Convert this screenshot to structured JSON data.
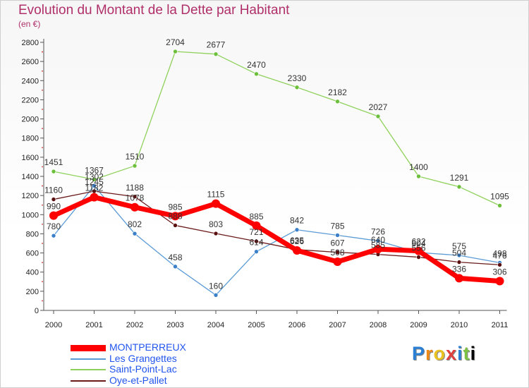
{
  "header": {
    "title": "Evolution du Montant de la Dette par Habitant",
    "subtitle": "(en €)"
  },
  "logo": {
    "text": "Proxiti"
  },
  "colors": {
    "MONTPERREUX": "#ff0000",
    "Les Grangettes": "#5b9bd5",
    "Saint-Point-Lac": "#8fd15b",
    "Oye-et-Pallet": "#6b1a1a",
    "title": "#b0306a"
  },
  "chart_data": {
    "type": "line",
    "title": "Evolution du Montant de la Dette par Habitant",
    "subtitle": "(en €)",
    "x": [
      "2000",
      "2001",
      "2002",
      "2003",
      "2004",
      "2005",
      "2006",
      "2007",
      "2008",
      "2009",
      "2010",
      "2011"
    ],
    "ylim": [
      0,
      2800
    ],
    "yticks": [
      0,
      200,
      400,
      600,
      800,
      1000,
      1200,
      1400,
      1600,
      1800,
      2000,
      2200,
      2400,
      2600,
      2800
    ],
    "grid": false,
    "legend_position": "bottom-left",
    "series": [
      {
        "name": "MONTPERREUX",
        "values": [
          990,
          1182,
          1078,
          985,
          1115,
          885,
          626,
          508,
          640,
          622,
          336,
          306
        ],
        "labels": [
          "990",
          "1182",
          "1078",
          "985",
          "1115",
          "885",
          "626",
          "508",
          "640",
          "622",
          "336",
          "306"
        ]
      },
      {
        "name": "Les Grangettes",
        "values": [
          780,
          1302,
          802,
          458,
          160,
          614,
          842,
          785,
          726,
          604,
          575,
          498
        ],
        "labels": [
          "780",
          "1302",
          "802",
          "458",
          "160",
          "614",
          "842",
          "785",
          "726",
          "604",
          "575",
          "498"
        ]
      },
      {
        "name": "Saint-Point-Lac",
        "values": [
          1451,
          1367,
          1510,
          2704,
          2677,
          2470,
          2330,
          2182,
          2027,
          1400,
          1291,
          1095
        ],
        "labels": [
          "1451",
          "1367",
          "1510",
          "2704",
          "2677",
          "2470",
          "2330",
          "2182",
          "2027",
          "1400",
          "1291",
          "1095"
        ]
      },
      {
        "name": "Oye-et-Pallet",
        "values": [
          1160,
          1245,
          1188,
          888,
          803,
          721,
          635,
          607,
          585,
          556,
          504,
          476
        ],
        "labels": [
          "1160",
          "1245",
          "1188",
          "888",
          "803",
          "721",
          "635",
          "607",
          "585",
          "556",
          "504",
          "476"
        ]
      }
    ]
  }
}
